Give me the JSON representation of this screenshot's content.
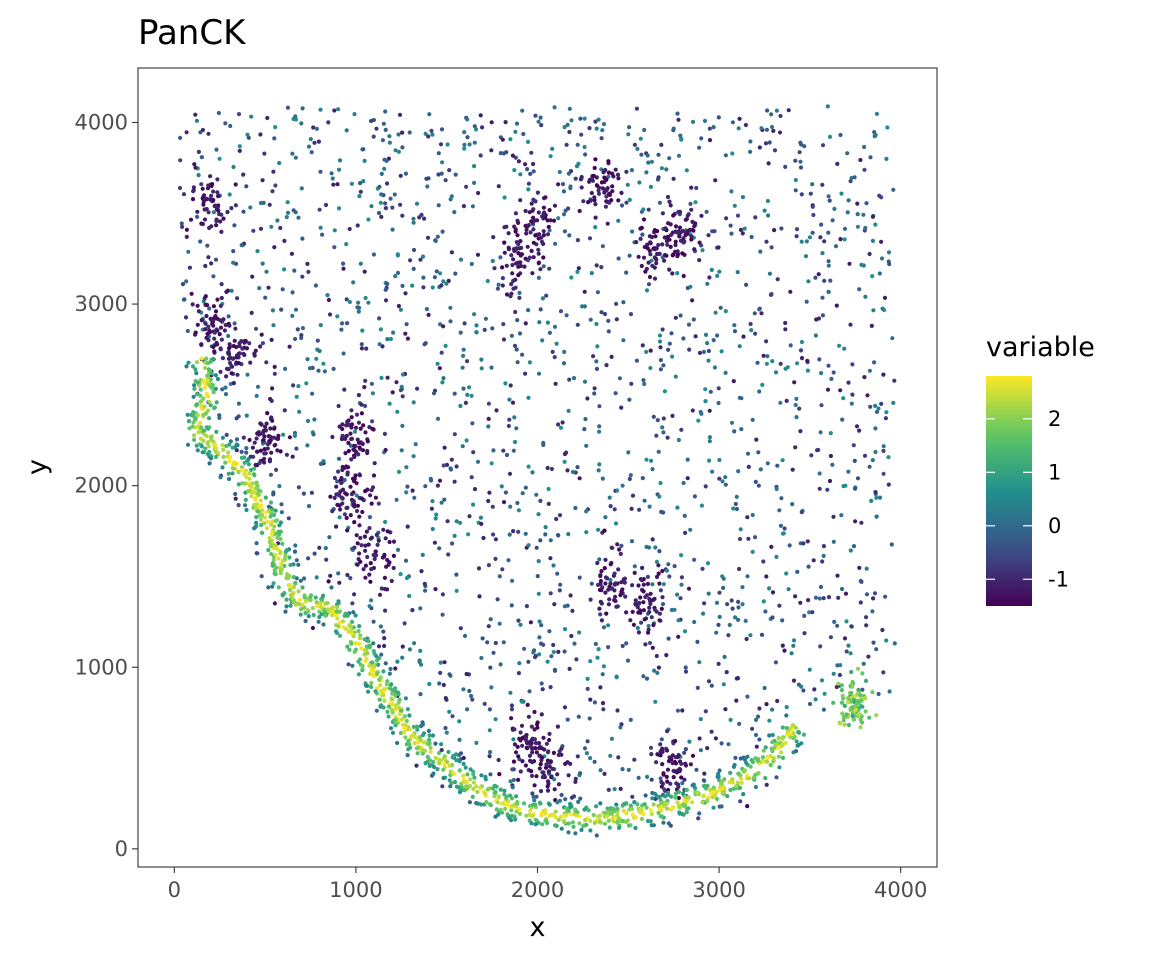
{
  "chart_data": {
    "type": "scatter",
    "title": "PanCK",
    "xlabel": "x",
    "ylabel": "y",
    "xlim": [
      -200,
      4200
    ],
    "ylim": [
      -100,
      4300
    ],
    "x_ticks": [
      0,
      1000,
      2000,
      3000,
      4000
    ],
    "y_ticks": [
      0,
      1000,
      2000,
      3000,
      4000
    ],
    "x_tick_labels": [
      "0",
      "1000",
      "2000",
      "3000",
      "4000"
    ],
    "y_tick_labels": [
      "0",
      "1000",
      "2000",
      "3000",
      "4000"
    ],
    "grid": false,
    "legend": {
      "title": "variable",
      "placement": "right",
      "type": "colorbar",
      "range": [
        -1.5,
        2.8
      ],
      "breaks": [
        -1,
        0,
        1,
        2
      ],
      "break_labels": [
        "-1",
        "0",
        "1",
        "2"
      ],
      "colormap": "viridis",
      "colors": [
        "#440154",
        "#3b528b",
        "#21908c",
        "#5dc863",
        "#fde725"
      ]
    },
    "point_groups": {
      "description_note": "",
      "boundary_band": [
        [
          150,
          2700
        ],
        [
          180,
          2500
        ],
        [
          120,
          2300
        ],
        [
          250,
          2200
        ],
        [
          400,
          2050
        ],
        [
          520,
          1800
        ],
        [
          600,
          1500
        ],
        [
          700,
          1350
        ],
        [
          850,
          1330
        ],
        [
          1000,
          1150
        ],
        [
          1100,
          950
        ],
        [
          1200,
          800
        ],
        [
          1300,
          620
        ],
        [
          1450,
          500
        ],
        [
          1600,
          380
        ],
        [
          1750,
          280
        ],
        [
          1950,
          200
        ],
        [
          2150,
          180
        ],
        [
          2350,
          170
        ],
        [
          2550,
          190
        ],
        [
          2750,
          240
        ],
        [
          2950,
          300
        ],
        [
          3150,
          400
        ],
        [
          3300,
          520
        ],
        [
          3420,
          680
        ]
      ],
      "right_cluster": [
        3750,
        800
      ],
      "dense_clusters": [
        [
          200,
          3550
        ],
        [
          200,
          2900
        ],
        [
          350,
          2750
        ],
        [
          500,
          2250
        ],
        [
          1000,
          2250
        ],
        [
          950,
          1950
        ],
        [
          1100,
          1600
        ],
        [
          2000,
          3450
        ],
        [
          2350,
          3650
        ],
        [
          1900,
          3250
        ],
        [
          2650,
          3300
        ],
        [
          2800,
          3400
        ],
        [
          2600,
          1350
        ],
        [
          2400,
          1450
        ],
        [
          1950,
          600
        ],
        [
          2050,
          450
        ],
        [
          2750,
          450
        ]
      ]
    }
  }
}
